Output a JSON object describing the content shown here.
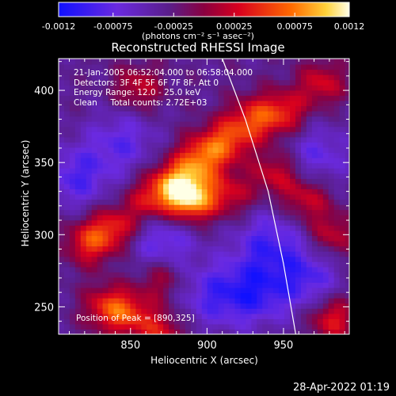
{
  "colorbar": {
    "tick_labels": [
      "-0.0012",
      "-0.00075",
      "-0.00025",
      "0.00025",
      "0.00075",
      "0.0012"
    ],
    "tick_values": [
      -0.0012,
      -0.00075,
      -0.00025,
      0.00025,
      0.00075,
      0.0012
    ],
    "range": [
      -0.0012,
      0.0012
    ],
    "unit_label": "(photons cm⁻² s⁻¹ asec⁻²)"
  },
  "annotations": {
    "time_range": "21-Jan-2005 06:52:04.000 to 06:58:04.000",
    "detectors": "Detectors: 3F 4F 5F 6F 7F 8F, Att 0",
    "energy_range": "Energy Range: 12.0 - 25.0 keV",
    "method_counts": "Clean     Total counts: 2.72E+03",
    "peak": "Position of Peak = [890,325]"
  },
  "footer": {
    "timestamp": "28-Apr-2022 01:19"
  },
  "chart_data": {
    "type": "heatmap",
    "title": "Reconstructed RHESSI Image",
    "xlabel": "Heliocentric X (arcsec)",
    "ylabel": "Heliocentric Y (arcsec)",
    "xlim": [
      803,
      993
    ],
    "ylim": [
      231,
      422
    ],
    "x_ticks": [
      850,
      900,
      950
    ],
    "y_ticks": [
      250,
      300,
      350,
      400
    ],
    "x_tick_labels": [
      "850",
      "900",
      "950"
    ],
    "y_tick_labels": [
      "250",
      "300",
      "350",
      "400"
    ],
    "value_range": [
      -0.0012,
      0.0012
    ],
    "peak": {
      "x": 890,
      "y": 325,
      "value": 0.0012
    },
    "grid": false,
    "colors": {
      "background": "#000000",
      "negative_min": "#1b1bff",
      "negative": "#8040ff",
      "zero": "#5a1e8a",
      "positive": "#d8001e",
      "positive_mid": "#ff6a00",
      "positive_max": "#ffffe6",
      "limb": "#ffffff"
    },
    "limb_points": [
      [
        910,
        422
      ],
      [
        925,
        380
      ],
      [
        940,
        330
      ],
      [
        950,
        280
      ],
      [
        958,
        231
      ]
    ],
    "bright_sources": [
      {
        "x": 890,
        "y": 325,
        "value": 0.0012
      },
      {
        "x": 878,
        "y": 335,
        "value": 0.00095
      },
      {
        "x": 895,
        "y": 352,
        "value": 0.0009
      },
      {
        "x": 912,
        "y": 365,
        "value": 0.0008
      },
      {
        "x": 930,
        "y": 380,
        "value": 0.00075
      },
      {
        "x": 950,
        "y": 385,
        "value": 0.0007
      },
      {
        "x": 862,
        "y": 323,
        "value": 0.0006
      },
      {
        "x": 840,
        "y": 305,
        "value": 0.0007
      },
      {
        "x": 823,
        "y": 295,
        "value": 0.00075
      },
      {
        "x": 915,
        "y": 328,
        "value": 0.00055
      },
      {
        "x": 945,
        "y": 343,
        "value": 0.0006
      },
      {
        "x": 965,
        "y": 325,
        "value": 0.0006
      },
      {
        "x": 855,
        "y": 402,
        "value": 0.00055
      },
      {
        "x": 835,
        "y": 250,
        "value": 0.0007
      },
      {
        "x": 850,
        "y": 245,
        "value": 0.0006
      },
      {
        "x": 870,
        "y": 232,
        "value": 0.0006
      },
      {
        "x": 982,
        "y": 242,
        "value": 0.0007
      },
      {
        "x": 975,
        "y": 405,
        "value": 0.0006
      },
      {
        "x": 870,
        "y": 270,
        "value": 0.0005
      },
      {
        "x": 982,
        "y": 300,
        "value": 0.00055
      }
    ],
    "dim_regions": [
      {
        "x": 870,
        "y": 295,
        "value": -0.0006
      },
      {
        "x": 940,
        "y": 295,
        "value": -0.0006
      },
      {
        "x": 930,
        "y": 260,
        "value": -0.0007
      },
      {
        "x": 902,
        "y": 258,
        "value": -0.0005
      },
      {
        "x": 845,
        "y": 365,
        "value": -0.0005
      },
      {
        "x": 815,
        "y": 340,
        "value": -0.0006
      },
      {
        "x": 972,
        "y": 355,
        "value": -0.0005
      },
      {
        "x": 965,
        "y": 270,
        "value": -0.0006
      }
    ]
  }
}
